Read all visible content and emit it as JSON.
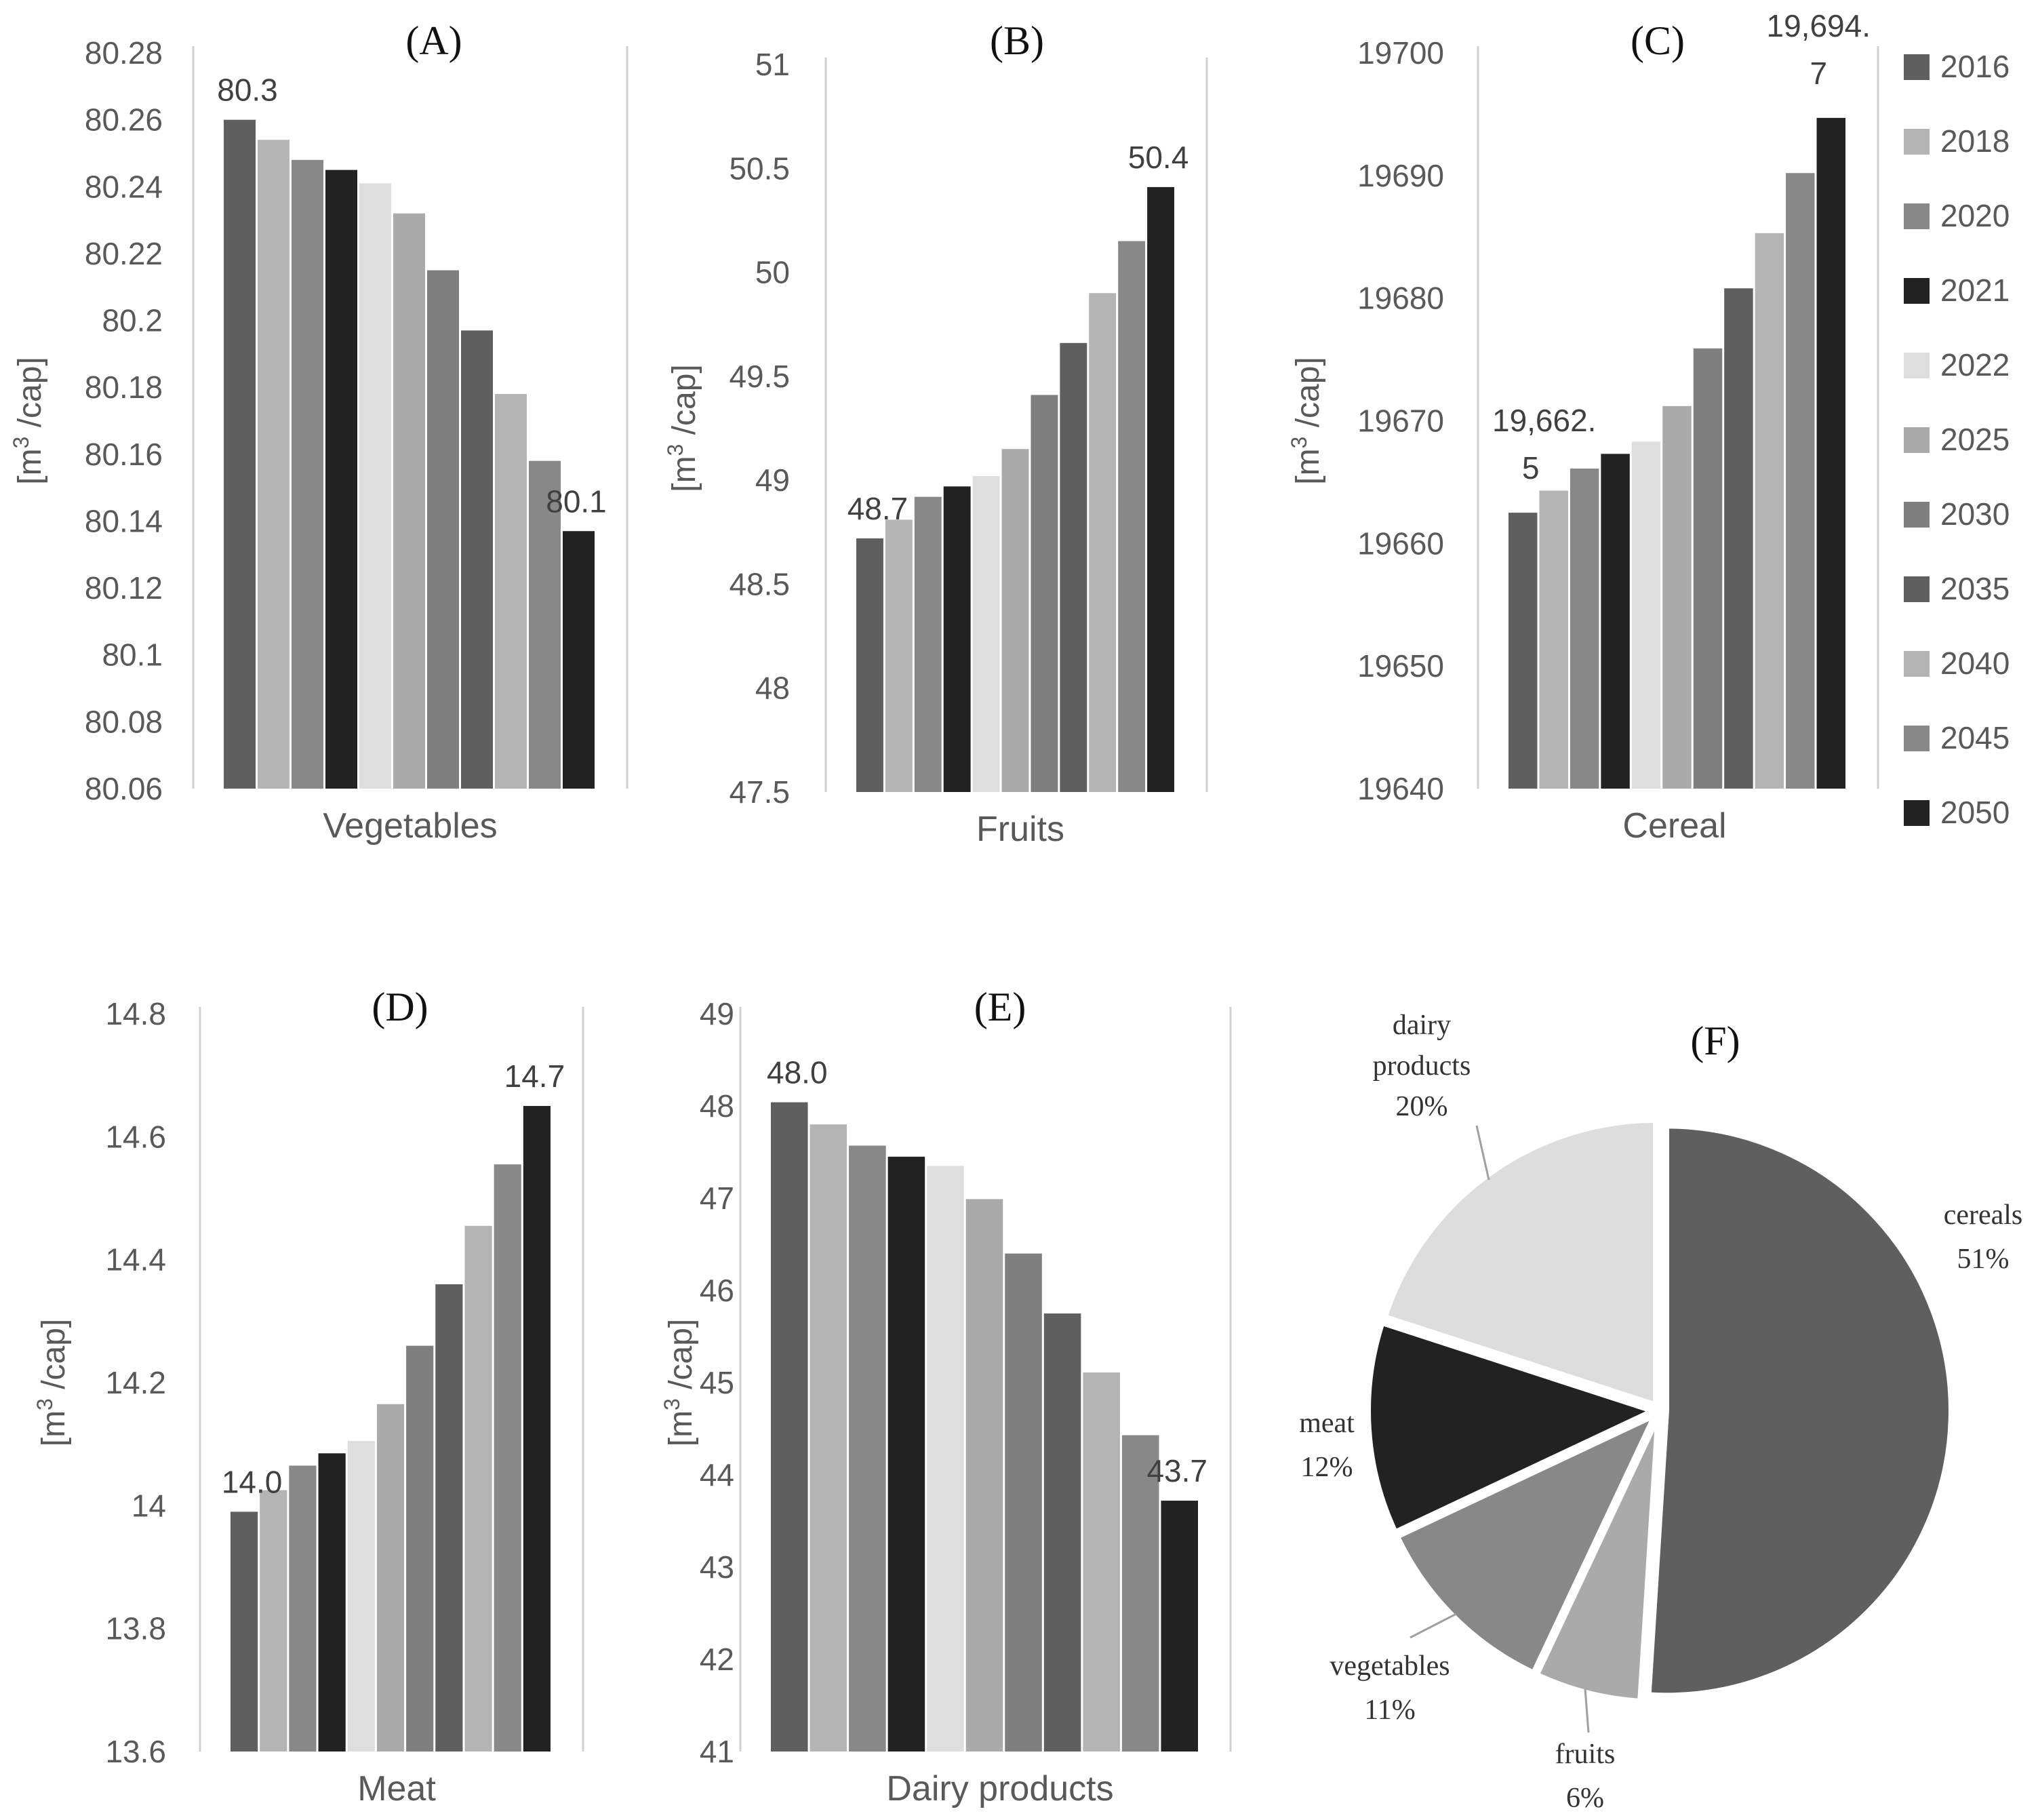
{
  "y_axis_label_main": "[m",
  "y_axis_label_sup": "3",
  "y_axis_label_tail": " /cap]",
  "legend": {
    "years": [
      "2016",
      "2018",
      "2020",
      "2021",
      "2022",
      "2025",
      "2030",
      "2035",
      "2040",
      "2045",
      "2050"
    ],
    "colors": [
      "#5f5f5f",
      "#b4b4b4",
      "#888888",
      "#222222",
      "#dedede",
      "#aaaaaa",
      "#7f7f7f",
      "#5f5f5f",
      "#b4b4b4",
      "#888888",
      "#222222"
    ]
  },
  "chart_data": [
    {
      "id": "A",
      "type": "bar",
      "title": "(A)",
      "category": "Vegetables",
      "ylim": [
        80.06,
        80.28
      ],
      "yticks": [
        "80.06",
        "80.08",
        "80.1",
        "80.12",
        "80.14",
        "80.16",
        "80.18",
        "80.2",
        "80.22",
        "80.24",
        "80.26",
        "80.28"
      ],
      "values": [
        80.26,
        80.254,
        80.248,
        80.245,
        80.241,
        80.232,
        80.215,
        80.197,
        80.178,
        80.158,
        80.137
      ],
      "first_label": "80.3",
      "last_label": "80.1"
    },
    {
      "id": "B",
      "type": "bar",
      "title": "(B)",
      "category": "Fruits",
      "ylim": [
        47.5,
        51
      ],
      "yticks": [
        "47.5",
        "48",
        "48.5",
        "49",
        "49.5",
        "50",
        "50.5",
        "51"
      ],
      "values": [
        48.72,
        48.81,
        48.92,
        48.97,
        49.02,
        49.15,
        49.41,
        49.66,
        49.9,
        50.15,
        50.41
      ],
      "first_label": "48.7",
      "last_label": "50.4"
    },
    {
      "id": "C",
      "type": "bar",
      "title": "(C)",
      "category": "Cereal",
      "ylim": [
        19640,
        19700
      ],
      "yticks": [
        "19640",
        "19650",
        "19660",
        "19670",
        "19680",
        "19690",
        "19700"
      ],
      "values": [
        19662.5,
        19664.3,
        19666.1,
        19667.3,
        19668.3,
        19671.2,
        19675.9,
        19680.8,
        19685.3,
        19690.2,
        19694.7
      ],
      "first_label_lines": [
        "19,662.",
        "5"
      ],
      "last_label_lines": [
        "19,694.",
        "7"
      ]
    },
    {
      "id": "D",
      "type": "bar",
      "title": "(D)",
      "category": "Meat",
      "ylim": [
        13.6,
        14.8
      ],
      "yticks": [
        "13.6",
        "13.8",
        "14",
        "14.2",
        "14.4",
        "14.6",
        "14.8"
      ],
      "values": [
        13.99,
        14.025,
        14.065,
        14.085,
        14.105,
        14.165,
        14.26,
        14.36,
        14.455,
        14.555,
        14.65
      ],
      "first_label": "14.0",
      "last_label": "14.7"
    },
    {
      "id": "E",
      "type": "bar",
      "title": "(E)",
      "category": "Dairy products",
      "ylim": [
        41,
        49
      ],
      "yticks": [
        "41",
        "42",
        "43",
        "44",
        "45",
        "46",
        "47",
        "48",
        "49"
      ],
      "values": [
        48.04,
        47.8,
        47.57,
        47.45,
        47.35,
        46.99,
        46.4,
        45.75,
        45.11,
        44.43,
        43.72
      ],
      "first_label": "48.0",
      "last_label": "43.7"
    },
    {
      "id": "F",
      "type": "pie",
      "title": "(F)",
      "slices": [
        {
          "name": "cereals",
          "value": 51,
          "label_line1": "cereals",
          "label_line2": "51%",
          "color": "#5f5f5f"
        },
        {
          "name": "fruits",
          "value": 6,
          "label_line1": "fruits",
          "label_line2": "6%",
          "color": "#aaaaaa"
        },
        {
          "name": "vegetables",
          "value": 11,
          "label_line1": "vegetables",
          "label_line2": "11%",
          "color": "#888888"
        },
        {
          "name": "meat",
          "value": 12,
          "label_line1": "meat",
          "label_line2": "12%",
          "color": "#222222"
        },
        {
          "name": "dairy products",
          "value": 20,
          "label_line1": "dairy",
          "label_line1b": "products",
          "label_line2": "20%",
          "color": "#dddddd"
        }
      ]
    }
  ]
}
